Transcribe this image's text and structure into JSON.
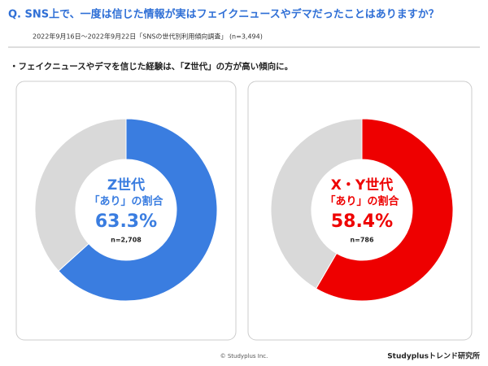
{
  "title": "Q. SNS上で、一度は信じた情報が実はフェイクニュースやデマだったことはありますか？",
  "subtitle": "2022年9月16日～2022年9月22日「SNSの世代別利用傾向調査」 (n=3,494)",
  "note": "・フェイクニュースやデマを信じた経験は、「Z世代」の方が高い傾向に。",
  "copyright": "© Studyplus Inc.",
  "brand": "Studyplusトレンド研究所",
  "chart_data": [
    {
      "type": "pie",
      "center_title": "Z世代",
      "center_subtitle": "「あり」の割合",
      "n_label": "n=2,708",
      "values": [
        63.3,
        36.7
      ],
      "value_labels": [
        "63.3%",
        null
      ],
      "colors": [
        "#3a7de0",
        "#d9d9d9"
      ],
      "text_color": "#3a7de0"
    },
    {
      "type": "pie",
      "center_title": "X・Y世代",
      "center_subtitle": "「あり」の割合",
      "n_label": "n=786",
      "values": [
        58.4,
        41.6
      ],
      "value_labels": [
        "58.4%",
        null
      ],
      "colors": [
        "#ee0000",
        "#d9d9d9"
      ],
      "text_color": "#ee0000"
    }
  ]
}
